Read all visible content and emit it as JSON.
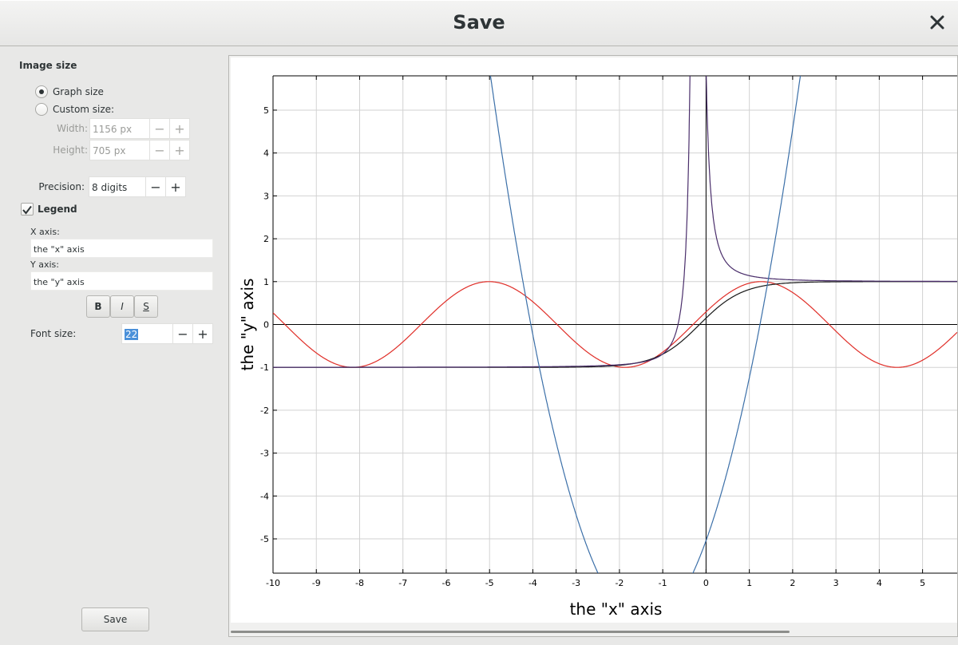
{
  "window": {
    "title": "Save",
    "close_icon": "close-icon"
  },
  "image_size": {
    "section_title": "Image size",
    "options": [
      "Graph size",
      "Custom size:"
    ],
    "selected": "Graph size",
    "width_label": "Width:",
    "width_value": "1156 px",
    "height_label": "Height:",
    "height_value": "705 px"
  },
  "precision": {
    "label": "Precision:",
    "value": "8 digits"
  },
  "legend": {
    "label": "Legend",
    "checked": true,
    "x_axis_label": "X axis:",
    "x_axis_value": "the \"x\" axis",
    "y_axis_label": "Y axis:",
    "y_axis_value": "the \"y\" axis",
    "style_buttons": [
      "B",
      "I",
      "S"
    ],
    "font_size_label": "Font size:",
    "font_size_value": "22"
  },
  "buttons": {
    "save": "Save",
    "minus": "−",
    "plus": "+"
  },
  "chart_data": {
    "type": "line",
    "xlabel": "the \"x\" axis",
    "ylabel": "the \"y\" axis",
    "xlim": [
      -10,
      5.8
    ],
    "ylim": [
      -5.8,
      5.8
    ],
    "x_ticks": [
      -10,
      -9,
      -8,
      -7,
      -6,
      -5,
      -4,
      -3,
      -2,
      -1,
      0,
      1,
      2,
      3,
      4,
      5
    ],
    "y_ticks": [
      -5,
      -4,
      -3,
      -2,
      -1,
      0,
      1,
      2,
      3,
      4,
      5
    ],
    "grid": true,
    "series": [
      {
        "function": "sin(x + 0.3)",
        "color": "#e0302a"
      },
      {
        "function": "tanh(x + 0.15)",
        "color": "#1a1a1a"
      },
      {
        "function": "(x + 0.2) / |x + 0.2| + 0.2 / (x + 0.2)^2",
        "color": "#4a2e6b"
      },
      {
        "function": "(x + 1.4)^2 - 7",
        "color": "#3b6fa8"
      }
    ]
  }
}
